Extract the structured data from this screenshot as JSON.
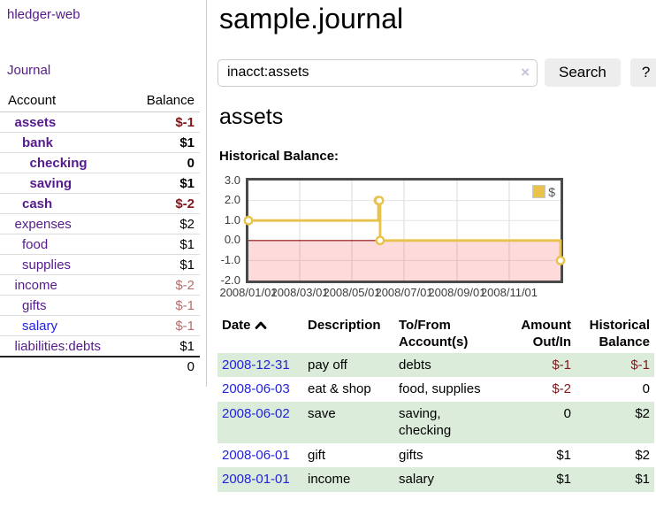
{
  "app": {
    "title": "hledger-web"
  },
  "colors": {
    "link_purple": "#551a8b",
    "link_blue": "#2323dd",
    "negative_strong": "#81171b",
    "negative_muted": "#b76c6c",
    "text_black": "#000000",
    "stripe_green": "#dbecdb",
    "chart_line_gold": "#e8c24a",
    "chart_zero_line": "#8f0d0d",
    "chart_negative_area": "#f9d9d9"
  },
  "sidebar": {
    "journal_link": "Journal",
    "account_header": "Account",
    "balance_header": "Balance",
    "accounts": [
      {
        "name": "assets",
        "depth": 1,
        "bold": true,
        "name_color": "#551a8b",
        "balance": "$-1",
        "balance_color": "#81171b",
        "bold_balance": true
      },
      {
        "name": "bank",
        "depth": 2,
        "bold": true,
        "name_color": "#551a8b",
        "balance": "$1",
        "balance_color": "#000000",
        "bold_balance": true
      },
      {
        "name": "checking",
        "depth": 3,
        "bold": true,
        "name_color": "#551a8b",
        "balance": "0",
        "balance_color": "#000000",
        "bold_balance": true
      },
      {
        "name": "saving",
        "depth": 3,
        "bold": true,
        "name_color": "#551a8b",
        "balance": "$1",
        "balance_color": "#000000",
        "bold_balance": true
      },
      {
        "name": "cash",
        "depth": 2,
        "bold": true,
        "name_color": "#551a8b",
        "balance": "$-2",
        "balance_color": "#81171b",
        "bold_balance": true
      },
      {
        "name": "expenses",
        "depth": 1,
        "bold": false,
        "name_color": "#551a8b",
        "balance": "$2",
        "balance_color": "#000000",
        "bold_balance": false
      },
      {
        "name": "food",
        "depth": 2,
        "bold": false,
        "name_color": "#551a8b",
        "balance": "$1",
        "balance_color": "#000000",
        "bold_balance": false
      },
      {
        "name": "supplies",
        "depth": 2,
        "bold": false,
        "name_color": "#551a8b",
        "balance": "$1",
        "balance_color": "#000000",
        "bold_balance": false
      },
      {
        "name": "income",
        "depth": 1,
        "bold": false,
        "name_color": "#551a8b",
        "balance": "$-2",
        "balance_color": "#b76c6c",
        "bold_balance": false
      },
      {
        "name": "gifts",
        "depth": 2,
        "bold": false,
        "name_color": "#551a8b",
        "balance": "$-1",
        "balance_color": "#b76c6c",
        "bold_balance": false
      },
      {
        "name": "salary",
        "depth": 2,
        "bold": false,
        "name_color": "#2323dd",
        "balance": "$-1",
        "balance_color": "#b76c6c",
        "bold_balance": false
      },
      {
        "name": "liabilities:debts",
        "depth": 1,
        "bold": false,
        "name_color": "#551a8b",
        "balance": "$1",
        "balance_color": "#000000",
        "bold_balance": false
      }
    ],
    "total": "0"
  },
  "header": {
    "title": "sample.journal"
  },
  "search": {
    "value": "inacct:assets",
    "clear_icon": "×",
    "button_label": "Search",
    "help_label": "?"
  },
  "register": {
    "title": "assets",
    "chart_label": "Historical Balance:",
    "table": {
      "headers": [
        {
          "label": "Date",
          "align": "left",
          "sort": "asc"
        },
        {
          "label": "Description",
          "align": "left"
        },
        {
          "label": "To/From\nAccount(s)",
          "align": "left"
        },
        {
          "label": "Amount\nOut/In",
          "align": "right"
        },
        {
          "label": "Historical\nBalance",
          "align": "right"
        }
      ],
      "rows": [
        {
          "date": "2008-12-31",
          "description": "pay off",
          "accounts": "debts",
          "amount": "$-1",
          "amount_color": "#81171b",
          "balance": "$-1",
          "balance_color": "#81171b"
        },
        {
          "date": "2008-06-03",
          "description": "eat & shop",
          "accounts": "food, supplies",
          "amount": "$-2",
          "amount_color": "#81171b",
          "balance": "0",
          "balance_color": "#000000"
        },
        {
          "date": "2008-06-02",
          "description": "save",
          "accounts": "saving,\nchecking",
          "amount": "0",
          "amount_color": "#000000",
          "balance": "$2",
          "balance_color": "#000000"
        },
        {
          "date": "2008-06-01",
          "description": "gift",
          "accounts": "gifts",
          "amount": "$1",
          "amount_color": "#000000",
          "balance": "$2",
          "balance_color": "#000000"
        },
        {
          "date": "2008-01-01",
          "description": "income",
          "accounts": "salary",
          "amount": "$1",
          "amount_color": "#000000",
          "balance": "$1",
          "balance_color": "#000000"
        }
      ]
    }
  },
  "chart_data": {
    "type": "line",
    "title": "Historical Balance",
    "legend": {
      "position": "top-right",
      "entries": [
        {
          "label": "$",
          "color": "#e8c24a"
        }
      ]
    },
    "xlim": [
      "2008-01-01",
      "2008-12-31"
    ],
    "ylim": [
      -2,
      3
    ],
    "y_ticks": {
      "values": [
        3,
        2,
        1,
        0,
        -1,
        -2
      ],
      "labels": [
        "3.0",
        "2.0",
        "1.0",
        "0.0",
        "-1.0",
        "-2.0"
      ]
    },
    "x_ticks": {
      "dates": [
        "2008-01-01",
        "2008-03-01",
        "2008-05-01",
        "2008-07-01",
        "2008-09-01",
        "2008-11-01"
      ],
      "labels": [
        "2008/01/01",
        "2008/03/01",
        "2008/05/01",
        "2008/07/01",
        "2008/09/01",
        "2008/11/01"
      ]
    },
    "series": [
      {
        "name": "$",
        "style": "step-line",
        "color": "#e8c24a",
        "marker": "open-circle",
        "points": [
          {
            "date": "2008-01-01",
            "value": 1
          },
          {
            "date": "2008-06-01",
            "value": 2
          },
          {
            "date": "2008-06-02",
            "value": 2
          },
          {
            "date": "2008-06-03",
            "value": 0
          },
          {
            "date": "2008-12-31",
            "value": -1
          }
        ]
      }
    ],
    "grid": true,
    "zero_line_color": "#8f0d0d",
    "negative_area_color": "#f9d9d9"
  }
}
